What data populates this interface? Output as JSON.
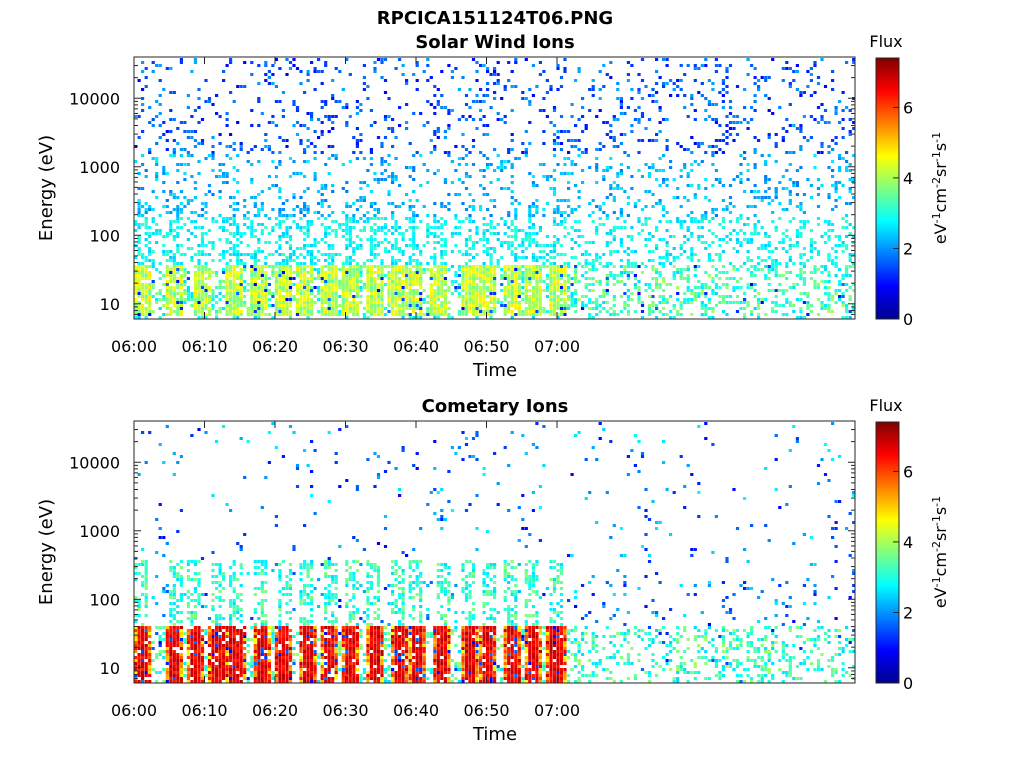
{
  "figure_title": "RPCICA151124T06.PNG",
  "colors": {
    "axis": "#262626",
    "background": "#ffffff"
  },
  "colormap": "jet",
  "chart_data": [
    {
      "type": "heatmap",
      "title": "Solar Wind Ions",
      "xlabel": "Time",
      "ylabel": "Energy (eV)",
      "x_ticks": [
        "06:00",
        "06:10",
        "06:20",
        "06:30",
        "06:40",
        "06:50",
        "07:00"
      ],
      "x_range_minutes": [
        0,
        61
      ],
      "y_scale": "log",
      "y_ticks": [
        "10",
        "100",
        "1000",
        "10000"
      ],
      "y_range_ev": [
        6,
        40000
      ],
      "colorbar": {
        "title": "Flux",
        "ticks": [
          "0",
          "2",
          "4",
          "6"
        ],
        "range": [
          0,
          7.4
        ],
        "unit": "eV-1cm-2sr-1s-1"
      },
      "grid": false,
      "pulse_minutes": [
        1.0,
        5.5,
        9.5,
        14.0,
        17.5,
        21.0,
        24.0,
        27.5,
        30.5,
        34.0,
        37.0,
        39.5,
        43.0,
        47.5,
        50.0,
        53.5,
        56.5,
        60.0
      ],
      "low_energy_band_ev": [
        7,
        40
      ],
      "low_energy_flux_range": [
        3.5,
        4.8
      ],
      "high_energy_flux_range": [
        0.8,
        2.8
      ]
    },
    {
      "type": "heatmap",
      "title": "Cometary Ions",
      "xlabel": "Time",
      "ylabel": "Energy (eV)",
      "x_ticks": [
        "06:00",
        "06:10",
        "06:20",
        "06:30",
        "06:40",
        "06:50",
        "07:00"
      ],
      "x_range_minutes": [
        0,
        61
      ],
      "y_scale": "log",
      "y_ticks": [
        "10",
        "100",
        "1000",
        "10000"
      ],
      "y_range_ev": [
        6,
        40000
      ],
      "colorbar": {
        "title": "Flux",
        "ticks": [
          "0",
          "2",
          "4",
          "6"
        ],
        "range": [
          0,
          7.4
        ],
        "unit": "eV-1cm-2sr-1s-1"
      },
      "grid": false,
      "pulse_minutes": [
        0.8,
        5.6,
        8.3,
        11.7,
        14.2,
        17.8,
        21.0,
        24.3,
        27.6,
        30.6,
        33.8,
        37.4,
        39.8,
        43.5,
        47.3,
        50.1,
        53.4,
        56.4,
        59.7
      ],
      "low_energy_band_ev": [
        6,
        45
      ],
      "low_energy_flux_range": [
        4.5,
        7.0
      ],
      "high_energy_flux_range": [
        0.8,
        3.0
      ]
    }
  ]
}
